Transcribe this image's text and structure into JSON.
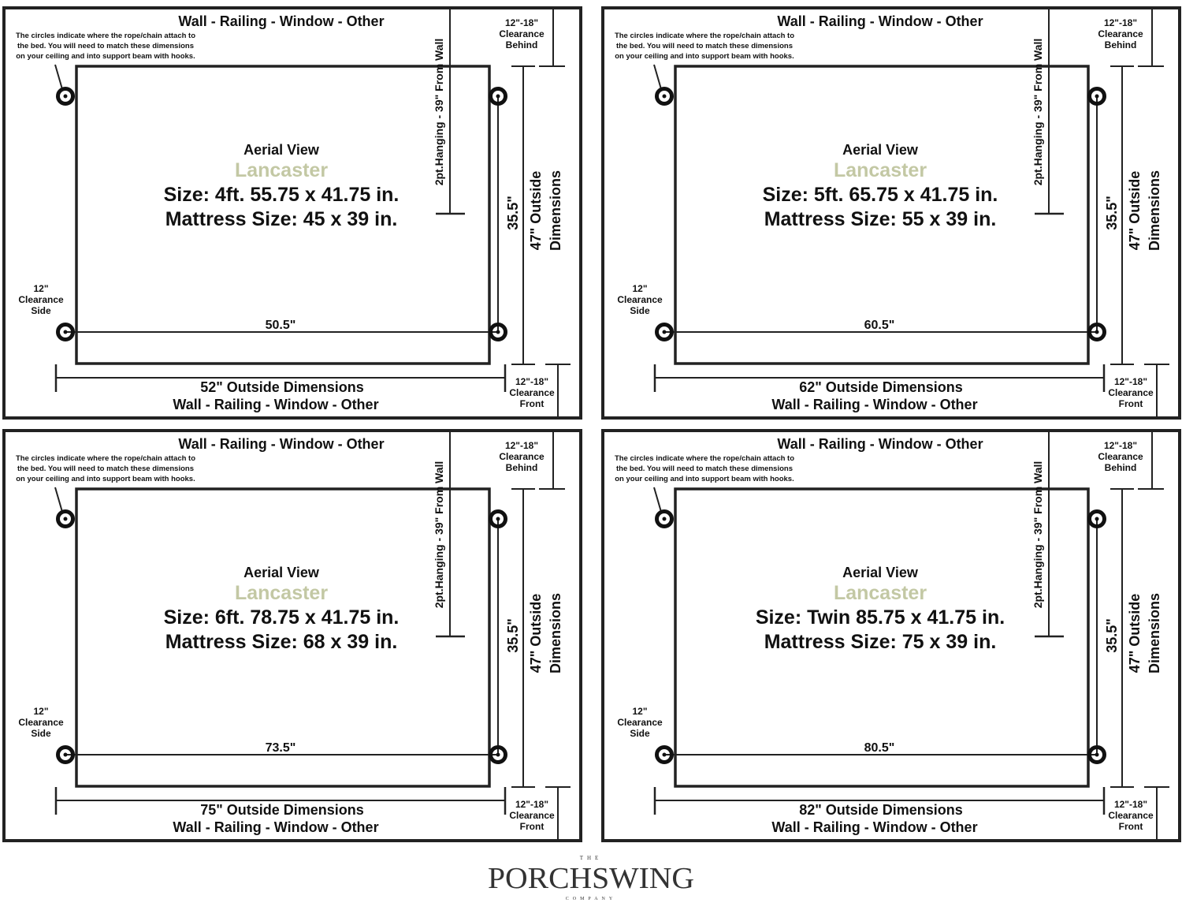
{
  "colors": {
    "accent": "#c3c8a4",
    "line": "#222222"
  },
  "common": {
    "wall_label": "Wall - Railing - Window - Other",
    "note_lines": [
      "The circles indicate where the rope/chain attach to",
      "the bed. You will need to match these dimensions",
      "on your ceiling and into support beam with hooks."
    ],
    "hanging_label": "2pt.Hanging - 39\" From Wall",
    "behind_lines": [
      "12\"-18\"",
      "Clearance",
      "Behind"
    ],
    "front_lines": [
      "12\"-18\"",
      "Clearance",
      "Front"
    ],
    "side_lines": [
      "12\"",
      "Clearance",
      "Side"
    ],
    "aerial_view": "Aerial View",
    "model": "Lancaster",
    "depth_inner": "35.5\"",
    "depth_outer_lines": [
      "47\" Outside",
      "Dimensions"
    ]
  },
  "panels": [
    {
      "size": "Size: 4ft. 55.75 x 41.75 in.",
      "mattress": "Mattress Size: 45 x 39 in.",
      "inner_width": "50.5\"",
      "outer_width": "52\" Outside Dimensions"
    },
    {
      "size": "Size: 5ft. 65.75 x 41.75 in.",
      "mattress": "Mattress Size: 55 x 39 in.",
      "inner_width": "60.5\"",
      "outer_width": "62\" Outside Dimensions"
    },
    {
      "size": "Size: 6ft. 78.75 x 41.75 in.",
      "mattress": "Mattress Size: 68 x 39 in.",
      "inner_width": "73.5\"",
      "outer_width": "75\" Outside Dimensions"
    },
    {
      "size": "Size: Twin 85.75 x 41.75 in.",
      "mattress": "Mattress Size: 75 x 39 in.",
      "inner_width": "80.5\"",
      "outer_width": "82\" Outside Dimensions"
    }
  ],
  "logo": {
    "top": "THE",
    "main": "PORCHSWING",
    "bottom": "COMPANY"
  }
}
